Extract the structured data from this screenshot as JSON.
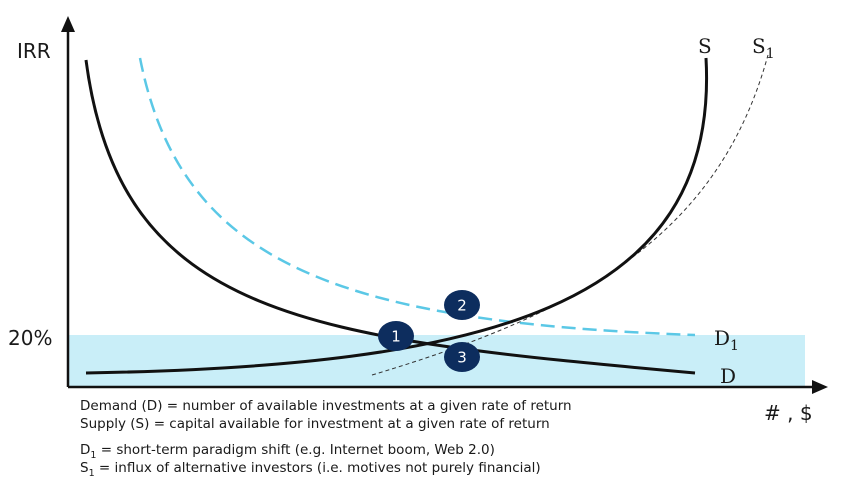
{
  "axes": {
    "y_label": "IRR",
    "x_label": "# , $",
    "level_label": "20%"
  },
  "curves": {
    "supply_label": "S",
    "supply_shift_label": {
      "base": "S",
      "sub": "1"
    },
    "demand_label": "D",
    "demand_shift_label": {
      "base": "D",
      "sub": "1"
    }
  },
  "intersections": [
    "1",
    "2",
    "3"
  ],
  "legend": {
    "line1": "Demand (D) = number of available investments at a given rate of return",
    "line2": "Supply (S) = capital available for investment at a given rate of return",
    "line3": {
      "sym": "D",
      "sub": "1",
      "text": " = short-term paradigm shift (e.g. Internet boom, Web 2.0)"
    },
    "line4": {
      "sym": "S",
      "sub": "1",
      "text": " = influx of alternative investors (i.e. motives not purely financial)"
    }
  },
  "colors": {
    "band": "#c9eef8",
    "dashed_demand": "#5bc8e6",
    "badge": "#0d2d5e",
    "curve": "#111111"
  }
}
